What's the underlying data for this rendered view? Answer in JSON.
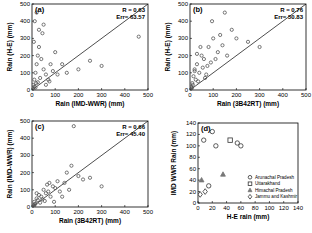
{
  "chart_data": [
    {
      "type": "scatter",
      "title": "(a)",
      "x_label": "Rain (IMD-WWR) (mm)",
      "y_label": "Rain (H-E) (mm)",
      "annotations": [
        "R = 0.63",
        "Err= 63.57"
      ],
      "xlim": [
        0,
        500
      ],
      "ylim": [
        0,
        500
      ],
      "xticks": [
        0,
        100,
        200,
        300,
        400,
        500
      ],
      "yticks": [
        0,
        100,
        200,
        300,
        400,
        500
      ],
      "series": [
        {
          "color": "#555555",
          "marker": "circle",
          "x": [
            5,
            10,
            15,
            20,
            25,
            30,
            8,
            12,
            40,
            50,
            60,
            70,
            80,
            90,
            100,
            3,
            6,
            18,
            35,
            45,
            110,
            130,
            150,
            200,
            20,
            30,
            50,
            15,
            10,
            25,
            60,
            75,
            460,
            250,
            300
          ],
          "values": [
            30,
            60,
            100,
            150,
            200,
            250,
            280,
            400,
            180,
            120,
            90,
            60,
            150,
            110,
            220,
            10,
            5,
            40,
            70,
            330,
            90,
            150,
            100,
            120,
            450,
            350,
            380,
            15,
            20,
            45,
            30,
            50,
            310,
            170,
            140
          ]
        }
      ]
    },
    {
      "type": "scatter",
      "title": "(b)",
      "x_label": "Rain (3B42RT) (mm)",
      "y_label": "Rain (H-E) (mm)",
      "annotations": [
        "R = 0.76",
        "Err= 50.83"
      ],
      "xlim": [
        0,
        500
      ],
      "ylim": [
        0,
        500
      ],
      "xticks": [
        0,
        100,
        200,
        300,
        400,
        500
      ],
      "yticks": [
        0,
        100,
        200,
        300,
        400,
        500
      ],
      "series": [
        {
          "color": "#555555",
          "marker": "circle",
          "x": [
            5,
            10,
            15,
            20,
            25,
            30,
            40,
            50,
            60,
            70,
            80,
            90,
            100,
            120,
            140,
            160,
            180,
            200,
            8,
            12,
            35,
            45,
            55,
            65,
            110,
            130,
            250,
            300,
            150,
            20,
            30,
            3,
            6,
            75,
            95
          ],
          "values": [
            20,
            40,
            80,
            120,
            60,
            150,
            100,
            200,
            180,
            90,
            250,
            160,
            300,
            220,
            260,
            200,
            350,
            300,
            10,
            30,
            50,
            250,
            130,
            70,
            180,
            320,
            280,
            250,
            450,
            110,
            210,
            5,
            15,
            140,
            400
          ]
        }
      ]
    },
    {
      "type": "scatter",
      "title": "(c)",
      "x_label": "Rain (3B42RT) (mm)",
      "y_label": "Rain (IMD-WWR) (mm)",
      "annotations": [
        "R = 0.66",
        "Err= 45.40"
      ],
      "xlim": [
        0,
        500
      ],
      "ylim": [
        0,
        500
      ],
      "xticks": [
        0,
        100,
        200,
        300,
        400,
        500
      ],
      "yticks": [
        0,
        100,
        200,
        300,
        400,
        500
      ],
      "series": [
        {
          "color": "#555555",
          "marker": "circle",
          "x": [
            5,
            10,
            15,
            20,
            25,
            30,
            40,
            50,
            60,
            70,
            80,
            90,
            100,
            120,
            140,
            160,
            180,
            200,
            8,
            12,
            35,
            45,
            55,
            65,
            110,
            130,
            150,
            220,
            250,
            300,
            20,
            3,
            75,
            95,
            170
          ],
          "values": [
            10,
            30,
            20,
            50,
            40,
            70,
            60,
            100,
            80,
            90,
            60,
            120,
            110,
            90,
            140,
            100,
            470,
            180,
            5,
            15,
            25,
            45,
            35,
            130,
            150,
            60,
            200,
            160,
            170,
            120,
            80,
            2,
            140,
            30,
            240
          ]
        }
      ]
    },
    {
      "type": "scatter",
      "x_label": "H-E rain (mm)",
      "y_label": "IMD WWR Rain (mm)",
      "title": "(d)",
      "xlim": [
        0,
        140
      ],
      "ylim": [
        0,
        140
      ],
      "xticks": [
        0,
        20,
        40,
        60,
        80,
        100,
        120,
        140
      ],
      "yticks": [
        0,
        20,
        40,
        60,
        80,
        100,
        120,
        140
      ],
      "legend": "lower right",
      "series": [
        {
          "name": "Arunachal Pradesh",
          "color": "#333333",
          "marker": "circle",
          "x": [
            8,
            20,
            25,
            55,
            60,
            15
          ],
          "values": [
            110,
            125,
            100,
            105,
            100,
            30
          ]
        },
        {
          "name": "Uttarakhand",
          "color": "#333333",
          "marker": "square",
          "x": [
            45
          ],
          "values": [
            110
          ]
        },
        {
          "name": "Himachal Pradesh",
          "color": "#777777",
          "marker": "triangle",
          "x": [
            35,
            5
          ],
          "values": [
            50,
            40
          ]
        },
        {
          "name": "Jammu and Kashmir",
          "color": "#333333",
          "marker": "diamond",
          "x": [
            10,
            3
          ],
          "values": [
            20,
            15
          ]
        }
      ]
    }
  ]
}
